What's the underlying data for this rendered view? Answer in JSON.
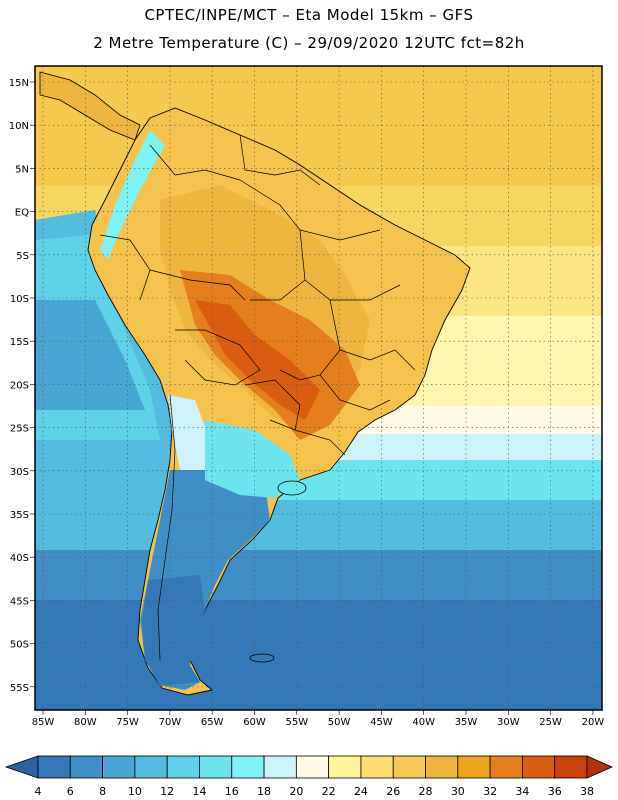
{
  "header": {
    "line1": "CPTEC/INPE/MCT –  Eta Model 15km – GFS",
    "line2": "2 Metre Temperature (C) – 29/09/2020 12UTC fct=82h"
  },
  "map": {
    "lat_labels": [
      "15N",
      "10N",
      "5N",
      "EQ",
      "5S",
      "10S",
      "15S",
      "20S",
      "25S",
      "30S",
      "35S",
      "40S",
      "45S",
      "50S",
      "55S"
    ],
    "lon_labels": [
      "85W",
      "80W",
      "75W",
      "70W",
      "65W",
      "60W",
      "55W",
      "50W",
      "45W",
      "40W",
      "35W",
      "30W",
      "25W",
      "20W"
    ]
  },
  "colorbar": {
    "labels": [
      "4",
      "6",
      "8",
      "10",
      "12",
      "14",
      "16",
      "18",
      "20",
      "22",
      "24",
      "26",
      "28",
      "30",
      "32",
      "34",
      "36",
      "38"
    ],
    "colors": [
      "#2f60a8",
      "#3578b8",
      "#3f8fc6",
      "#48a6d4",
      "#52bddf",
      "#5ed2e8",
      "#6ce4ee",
      "#7ff2f6",
      "#ccf3fa",
      "#fffbe6",
      "#fff59a",
      "#fbe071",
      "#f5cb55",
      "#efb63d",
      "#eda31a",
      "#e57f1c",
      "#d95d0f",
      "#c8420a",
      "#b6300a"
    ]
  }
}
